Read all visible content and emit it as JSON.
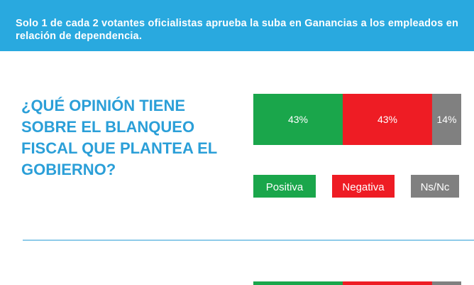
{
  "header": {
    "text": "Solo 1 de cada 2 votantes oficialistas aprueba la suba en Ganancias a los empleados en relación de dependencia."
  },
  "question": {
    "lines": [
      "¿QUÉ OPINIÓN TIENE",
      "SOBRE EL BLANQUEO",
      "FISCAL QUE PLANTEA EL",
      "GOBIERNO?"
    ]
  },
  "colors": {
    "header_bg": "#29a9df",
    "question_text": "#2b9fd8",
    "positive": "#1aa64b",
    "negative": "#ee1c24",
    "unknown": "#808080",
    "divider": "#8fcbe9"
  },
  "chart_data": [
    {
      "type": "bar",
      "orientation": "horizontal-stacked",
      "categories": [
        ""
      ],
      "series": [
        {
          "name": "Positiva",
          "values": [
            43
          ],
          "label": "43%",
          "color": "#1aa64b"
        },
        {
          "name": "Negativa",
          "values": [
            43
          ],
          "label": "43%",
          "color": "#ee1c24"
        },
        {
          "name": "Ns/Nc",
          "values": [
            14
          ],
          "label": "14%",
          "color": "#808080"
        }
      ],
      "xlim": [
        0,
        100
      ],
      "legend_position": "bottom",
      "title": "",
      "xlabel": "",
      "ylabel": ""
    }
  ]
}
